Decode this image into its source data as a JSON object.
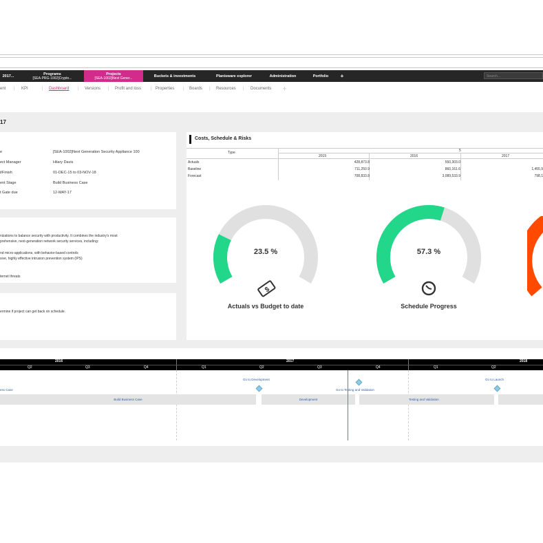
{
  "nav": {
    "items": [
      {
        "label": "2017..."
      },
      {
        "label": "Programs",
        "sub": "[SEA-PRG-1002]Crypto..."
      },
      {
        "label": "Projects",
        "sub": "[SEA-1002]Next Gener..."
      },
      {
        "label": "Buckets & investments"
      },
      {
        "label": "Planisware explorer"
      },
      {
        "label": "Administration"
      },
      {
        "label": "Portfolio"
      },
      {
        "label": "+"
      }
    ],
    "search_placeholder": "Search..."
  },
  "subtabs": [
    "ent",
    "KPI",
    "Dashboard",
    "Versions",
    "Profit and loss",
    "Properties",
    "Boards",
    "Resources",
    "Documents"
  ],
  "page_title": "17",
  "details": {
    "rows": [
      {
        "label": "e",
        "value": "[SEA-1002]Next Generation Security Appliance 100"
      },
      {
        "label": "ect Manager",
        "value": "Hilary Davis"
      },
      {
        "label": "t/Finish",
        "value": "01-DEC-15 to 03-NOV-18"
      },
      {
        "label": "ent Stage",
        "value": "Build Business Case"
      },
      {
        "label": "t Gate due",
        "value": "12-MAY-17"
      }
    ]
  },
  "description": {
    "lines": [
      "nizations to balance security with productivity. It combines the industry's most",
      "prehensive, next-generation network security services, including:",
      "nd micro-applications, with behavior-based controls",
      "sive, highly effective intrusion prevention system (IPS)",
      "ternet threats"
    ]
  },
  "notes": {
    "line": "ermine if project can get back on schedule."
  },
  "costs": {
    "title": "Costs, Schedule & Risks",
    "type_header": "Type",
    "group_header": "5",
    "years": [
      "2015",
      "2016",
      "2017"
    ],
    "rows": [
      {
        "label": "Actuals",
        "values": [
          "428,873.8",
          "550,303.0",
          ""
        ]
      },
      {
        "label": "Baseline",
        "values": [
          "711,250.9",
          "860,161.6",
          "1,455,9"
        ]
      },
      {
        "label": "Forecast",
        "values": [
          "708,833.8",
          "3,089,533.9",
          "798,1"
        ]
      }
    ]
  },
  "gauges": [
    {
      "title": "Actuals vs Budget to date",
      "percent_label": "23.5 %",
      "value": 23.5,
      "icon": "money-icon",
      "color": "#22d68a"
    },
    {
      "title": "Schedule Progress",
      "percent_label": "57.3 %",
      "value": 57.3,
      "icon": "clock-icon",
      "color": "#22d68a"
    }
  ],
  "colors": {
    "accent": "#d12b8c",
    "gauge_bg": "#e0e0e0",
    "gauge_partial": "#ff4a00"
  },
  "timeline": {
    "years": [
      "2016",
      "2017",
      "2018"
    ],
    "quarters_2016": [
      "Q2",
      "Q3",
      "Q4"
    ],
    "quarters_2017": [
      "Q1",
      "Q2",
      "Q3",
      "Q4"
    ],
    "quarters_2018": [
      "Q1",
      "Q2"
    ],
    "phases": [
      "Build Business Case",
      "Development",
      "Testing and Validation"
    ],
    "left_label": "ess Case",
    "milestones": [
      "Go to Development",
      "Go to Testing and Validation",
      "Go to Launch"
    ]
  }
}
